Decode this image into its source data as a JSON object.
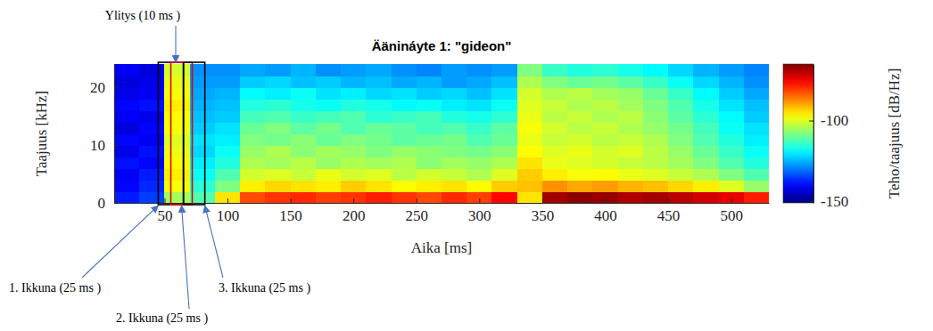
{
  "chart_data": {
    "type": "heatmap",
    "title": "Äänináyte 1: \"gideon\"",
    "x_label": "Aika [ms]",
    "y_label": "Taajuus [kHz]",
    "xlim": [
      10,
      530
    ],
    "ylim": [
      0,
      24
    ],
    "xticks": [
      50,
      100,
      150,
      200,
      250,
      300,
      350,
      400,
      450,
      500
    ],
    "yticks": [
      0,
      10,
      20
    ],
    "x_edges": [
      10,
      30,
      50,
      70,
      90,
      110,
      130,
      150,
      170,
      190,
      210,
      230,
      250,
      270,
      290,
      310,
      330,
      350,
      370,
      390,
      410,
      430,
      450,
      470,
      490,
      510,
      530
    ],
    "y_edges": [
      0,
      2,
      4,
      6,
      8,
      10,
      12,
      14,
      16,
      18,
      20,
      22,
      24
    ],
    "cells": [
      [
        -138,
        -135,
        -105,
        -112,
        -95,
        -82,
        -80,
        -79,
        -81,
        -80,
        -78,
        -80,
        -82,
        -79,
        -81,
        -76,
        -95,
        -68,
        -66,
        -67,
        -69,
        -68,
        -70,
        -72,
        -74,
        -78
      ],
      [
        -140,
        -137,
        -98,
        -115,
        -108,
        -96,
        -94,
        -95,
        -96,
        -93,
        -95,
        -97,
        -96,
        -95,
        -97,
        -93,
        -92,
        -88,
        -90,
        -89,
        -91,
        -92,
        -94,
        -96,
        -100,
        -106
      ],
      [
        -141,
        -138,
        -96,
        -118,
        -112,
        -101,
        -100,
        -102,
        -99,
        -101,
        -100,
        -103,
        -101,
        -102,
        -104,
        -100,
        -93,
        -96,
        -98,
        -97,
        -99,
        -100,
        -102,
        -104,
        -108,
        -112
      ],
      [
        -139,
        -140,
        -97,
        -120,
        -116,
        -104,
        -105,
        -103,
        -106,
        -104,
        -105,
        -104,
        -107,
        -105,
        -106,
        -104,
        -95,
        -99,
        -100,
        -101,
        -102,
        -103,
        -105,
        -108,
        -112,
        -116
      ],
      [
        -142,
        -139,
        -99,
        -122,
        -118,
        -106,
        -104,
        -107,
        -105,
        -106,
        -108,
        -106,
        -107,
        -108,
        -109,
        -107,
        -97,
        -100,
        -99,
        -101,
        -100,
        -103,
        -106,
        -110,
        -114,
        -118
      ],
      [
        -140,
        -141,
        -100,
        -121,
        -120,
        -108,
        -109,
        -107,
        -110,
        -108,
        -109,
        -111,
        -110,
        -109,
        -112,
        -110,
        -99,
        -102,
        -101,
        -103,
        -102,
        -104,
        -108,
        -112,
        -116,
        -120
      ],
      [
        -143,
        -140,
        -98,
        -123,
        -121,
        -110,
        -108,
        -111,
        -109,
        -112,
        -110,
        -111,
        -113,
        -112,
        -114,
        -111,
        -98,
        -101,
        -103,
        -102,
        -104,
        -106,
        -109,
        -113,
        -118,
        -121
      ],
      [
        -141,
        -142,
        -97,
        -124,
        -123,
        -113,
        -112,
        -114,
        -113,
        -112,
        -115,
        -114,
        -113,
        -116,
        -117,
        -115,
        -99,
        -103,
        -102,
        -104,
        -103,
        -107,
        -111,
        -115,
        -119,
        -123
      ],
      [
        -140,
        -139,
        -96,
        -125,
        -124,
        -116,
        -115,
        -117,
        -118,
        -116,
        -117,
        -119,
        -118,
        -120,
        -121,
        -118,
        -100,
        -102,
        -104,
        -103,
        -105,
        -108,
        -112,
        -117,
        -121,
        -124
      ],
      [
        -142,
        -141,
        -98,
        -126,
        -125,
        -119,
        -120,
        -118,
        -121,
        -120,
        -122,
        -121,
        -123,
        -122,
        -124,
        -121,
        -101,
        -104,
        -103,
        -105,
        -106,
        -110,
        -114,
        -119,
        -123,
        -126
      ],
      [
        -143,
        -142,
        -99,
        -127,
        -127,
        -123,
        -122,
        -124,
        -123,
        -125,
        -124,
        -126,
        -125,
        -127,
        -126,
        -124,
        -104,
        -108,
        -110,
        -109,
        -111,
        -114,
        -118,
        -122,
        -125,
        -128
      ],
      [
        -141,
        -143,
        -101,
        -128,
        -128,
        -126,
        -127,
        -125,
        -128,
        -127,
        -126,
        -128,
        -129,
        -127,
        -128,
        -127,
        -108,
        -114,
        -116,
        -115,
        -117,
        -119,
        -122,
        -125,
        -127,
        -129
      ]
    ],
    "colorbar": {
      "label": "Teho/taajuus [dB/Hz]",
      "range": [
        -151,
        -65
      ],
      "ticks": [
        -150,
        -100
      ]
    },
    "annotations": [
      {
        "text": "Ylitys (10 ms )"
      },
      {
        "text": "1. Ikkuna (25 ms )",
        "x_range": [
          45,
          65
        ],
        "color": "black"
      },
      {
        "text": "2. Ikkuna (25 ms )",
        "x_range": [
          55,
          72
        ],
        "color": "red"
      },
      {
        "text": "3. Ikkuna (25 ms )",
        "x_range": [
          65,
          82
        ],
        "color": "black"
      }
    ]
  }
}
